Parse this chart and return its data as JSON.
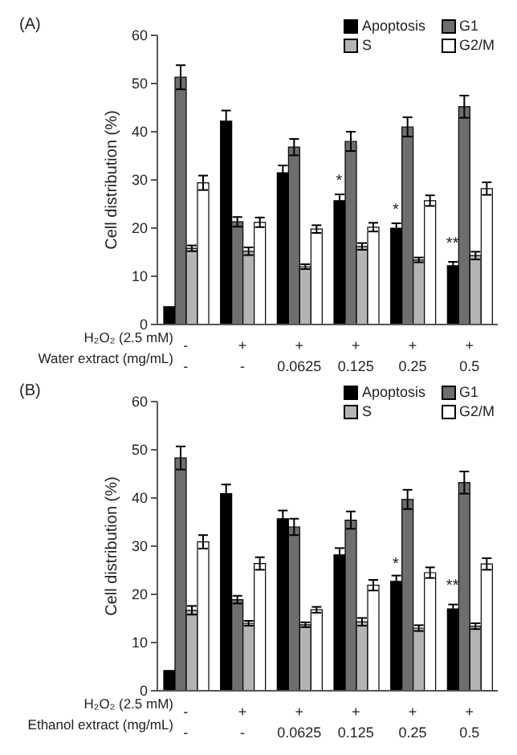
{
  "chart_data": [
    {
      "type": "bar",
      "title": "(A)",
      "ylabel": "Cell distribution (%)",
      "categories": [
        "-\n-",
        "+\n-",
        "+\n0.0625",
        "+\n0.125",
        "+\n0.25",
        "+\n0.5"
      ],
      "series": [
        {
          "name": "Apoptosis",
          "color": "#000000",
          "values": [
            3.7,
            42.2,
            31.5,
            25.7,
            20.0,
            12.2
          ],
          "errors": [
            null,
            2.2,
            1.5,
            1.3,
            1.0,
            0.8
          ]
        },
        {
          "name": "G1",
          "color": "#6e6e6e",
          "values": [
            51.3,
            21.3,
            36.8,
            38.0,
            41.0,
            45.2
          ],
          "errors": [
            2.5,
            1.0,
            1.7,
            2.0,
            2.0,
            2.3
          ]
        },
        {
          "name": "S",
          "color": "#b4b4b4",
          "values": [
            15.8,
            15.2,
            12.0,
            16.2,
            13.4,
            14.3
          ],
          "errors": [
            0.6,
            0.8,
            0.5,
            0.7,
            0.5,
            0.8
          ]
        },
        {
          "name": "G2/M",
          "color": "#ffffff",
          "values": [
            29.4,
            21.2,
            19.8,
            20.2,
            25.7,
            28.2
          ],
          "errors": [
            1.5,
            1.0,
            0.8,
            0.9,
            1.1,
            1.3
          ]
        }
      ],
      "annotations": [
        "H₂O₂ (2.5 mM)",
        "Water extract (mg/mL)",
        {
          "text": "*",
          "x": "+\n0.125",
          "y": 28.5
        },
        {
          "text": "*",
          "x": "+\n0.25",
          "y": 22.5
        },
        {
          "text": "**",
          "x": "+\n0.5",
          "y": 15.5
        }
      ],
      "ylim": [
        0,
        60
      ],
      "yticks": [
        0,
        10,
        20,
        30,
        40,
        50,
        60
      ],
      "grid": false,
      "legend": "top right"
    },
    {
      "type": "bar",
      "title": "(B)",
      "ylabel": "Cell distribution (%)",
      "categories": [
        "-\n-",
        "+\n-",
        "+\n0.0625",
        "+\n0.125",
        "+\n0.25",
        "+\n0.5"
      ],
      "series": [
        {
          "name": "Apoptosis",
          "color": "#000000",
          "values": [
            4.2,
            40.9,
            35.7,
            28.2,
            22.7,
            17.0
          ],
          "errors": [
            null,
            1.9,
            1.7,
            1.4,
            1.2,
            0.9
          ]
        },
        {
          "name": "G1",
          "color": "#6e6e6e",
          "values": [
            48.3,
            18.9,
            34.0,
            35.4,
            39.7,
            43.2
          ],
          "errors": [
            2.4,
            0.8,
            1.7,
            1.8,
            2.0,
            2.3
          ]
        },
        {
          "name": "S",
          "color": "#b4b4b4",
          "values": [
            16.7,
            14.0,
            13.7,
            14.3,
            13.0,
            13.4
          ],
          "errors": [
            0.9,
            0.5,
            0.5,
            0.8,
            0.6,
            0.6
          ]
        },
        {
          "name": "G2/M",
          "color": "#ffffff",
          "values": [
            30.9,
            26.4,
            16.8,
            21.9,
            24.5,
            26.3
          ],
          "errors": [
            1.4,
            1.3,
            0.6,
            1.1,
            1.1,
            1.2
          ]
        }
      ],
      "annotations": [
        "H₂O₂ (2.5 mM)",
        "Ethanol extract (mg/mL)",
        {
          "text": "*",
          "x": "+\n0.25",
          "y": 25.0
        },
        {
          "text": "**",
          "x": "+\n0.5",
          "y": 20.5
        }
      ],
      "ylim": [
        0,
        60
      ],
      "yticks": [
        0,
        10,
        20,
        30,
        40,
        50,
        60
      ],
      "grid": false,
      "legend": "top right"
    }
  ]
}
